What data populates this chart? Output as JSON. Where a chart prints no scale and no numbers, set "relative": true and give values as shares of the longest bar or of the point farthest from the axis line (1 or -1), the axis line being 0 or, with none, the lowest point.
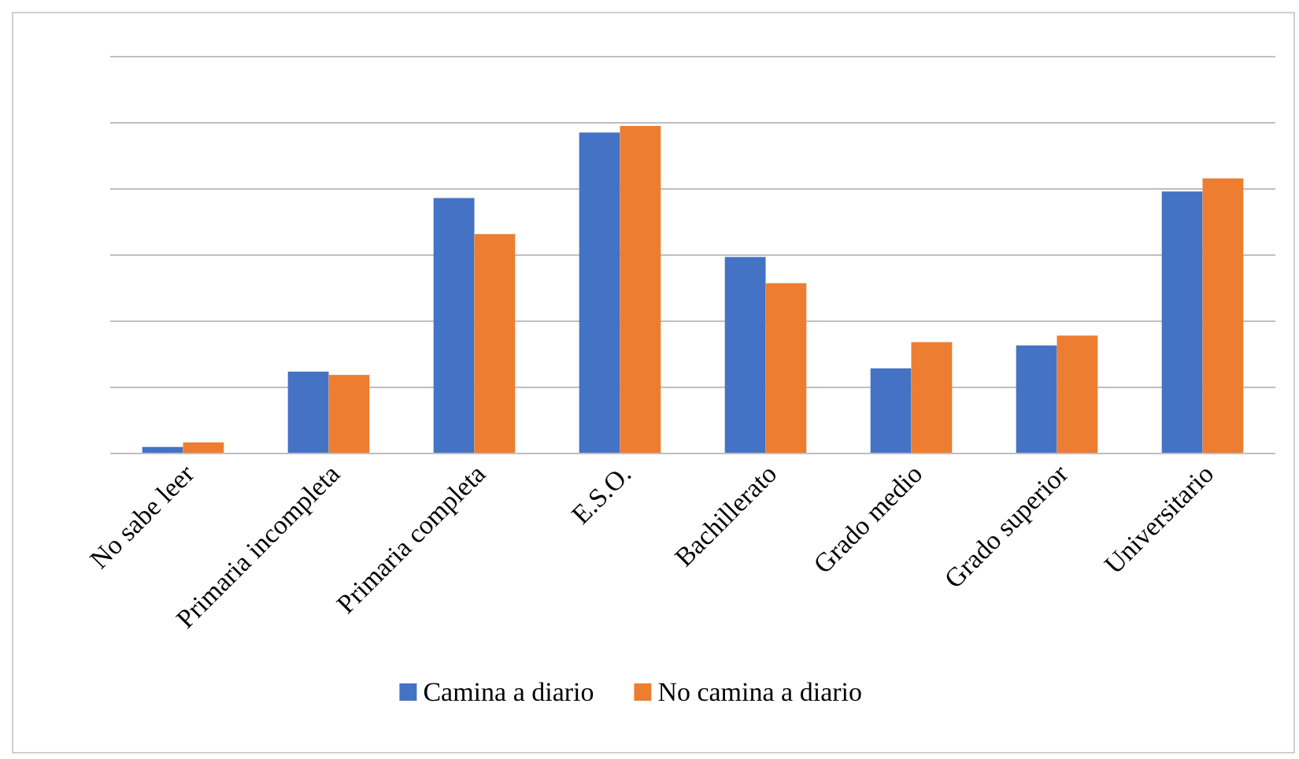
{
  "chart_data": {
    "type": "bar",
    "relative": true,
    "grid": "y",
    "legend": "bottom",
    "categories": [
      "No sabe leer",
      "Primaria incompleta",
      "Primaria completa",
      "E.S.O.",
      "Bachillerato",
      "Grado medio",
      "Grado superior",
      "Universitario"
    ],
    "series": [
      {
        "name": "Camina a diario",
        "color": "#4472c4",
        "values": [
          0.02,
          0.25,
          0.78,
          0.98,
          0.6,
          0.26,
          0.33,
          0.8
        ]
      },
      {
        "name": "No camina a diario",
        "color": "#ed7d31",
        "values": [
          0.034,
          0.24,
          0.67,
          1,
          0.52,
          0.34,
          0.36,
          0.84
        ]
      }
    ]
  }
}
